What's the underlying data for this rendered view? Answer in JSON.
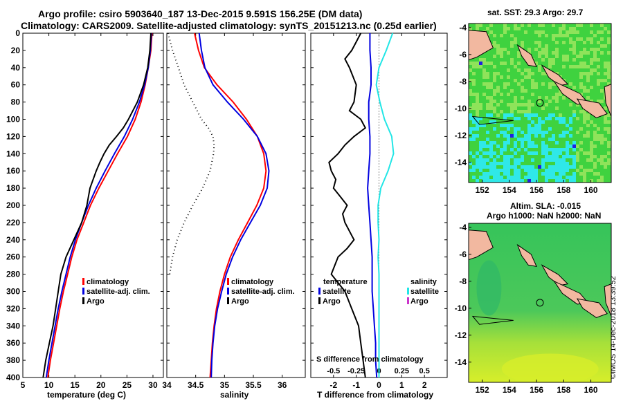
{
  "title": {
    "line1": "Argo profile: csiro 5903640_187 13-Dec-2015 9.591S 156.25E (DM data)",
    "line2": "Climatology: CARS2009. Satellite-adjusted climatology: synTS_20151213.nc (0.25d earlier)"
  },
  "sst_map": {
    "header": "sat. SST: 29.3 Argo: 29.7",
    "xticks": [
      152,
      154,
      156,
      158,
      160
    ],
    "yticks": [
      -4,
      -6,
      -8,
      -10,
      -12,
      -14
    ],
    "xlim": [
      151,
      161.5
    ],
    "ylim": [
      -15.5,
      -3.7
    ],
    "float_lon": 156.25,
    "float_lat": -9.591,
    "color_bg": "#3fd23f",
    "color_alt": "#8fe35a",
    "color_cyan": "#2fe8e8",
    "color_blue": "#2020e0",
    "color_land": "#f2b8a0"
  },
  "sla_map": {
    "header_line1": "Altim. SLA: -0.015",
    "header_line2": "Argo h1000: NaN h2000: NaN",
    "xticks": [
      152,
      154,
      156,
      158,
      160
    ],
    "yticks": [
      -4,
      -6,
      -8,
      -10,
      -12,
      -14
    ],
    "xlim": [
      151,
      161.5
    ],
    "ylim": [
      -15.5,
      -3.7
    ],
    "color_green": "#36c45a",
    "color_yellow": "#d7ee2a"
  },
  "timestamp": "©IMOS 14-Dec-2018 13:39:52",
  "colors": {
    "climatology": "#ff0000",
    "satellite": "#0000e0",
    "argo": "#000000",
    "satellite_salinity": "#22e6e6",
    "argo_salinity": "#cc33cc"
  },
  "chart_data": [
    {
      "type": "line",
      "title": "",
      "xlabel": "temperature (deg C)",
      "ylabel": "",
      "xlim": [
        5,
        32
      ],
      "ylim": [
        400,
        0
      ],
      "xticks": [
        5,
        10,
        15,
        20,
        25,
        30
      ],
      "yticks": [
        0,
        20,
        40,
        60,
        80,
        100,
        120,
        140,
        160,
        180,
        200,
        220,
        240,
        260,
        280,
        300,
        320,
        340,
        360,
        380,
        400
      ],
      "legend": [
        "climatology",
        "satellite-adj. clim.",
        "Argo"
      ],
      "legend_position": "bottom-right",
      "series": [
        {
          "name": "climatology",
          "color": "red",
          "depth": [
            0,
            20,
            40,
            60,
            80,
            100,
            120,
            140,
            160,
            180,
            200,
            220,
            240,
            260,
            280,
            300,
            320,
            340,
            360,
            380,
            400
          ],
          "values": [
            29.8,
            29.6,
            29.1,
            28.5,
            27.7,
            26.6,
            25.1,
            23.2,
            21.4,
            19.6,
            18.0,
            16.7,
            15.4,
            14.4,
            13.6,
            12.8,
            12.1,
            11.5,
            10.9,
            10.3,
            9.8
          ]
        },
        {
          "name": "satellite-adj. clim.",
          "color": "blue",
          "depth": [
            0,
            20,
            40,
            60,
            80,
            100,
            120,
            140,
            160,
            180,
            200,
            220,
            240,
            260,
            280,
            300,
            320,
            340,
            360,
            380,
            400
          ],
          "values": [
            29.7,
            29.5,
            29.1,
            28.4,
            27.4,
            26.1,
            24.5,
            22.6,
            20.8,
            19.1,
            17.6,
            16.3,
            15.1,
            14.1,
            13.3,
            12.5,
            11.8,
            11.2,
            10.6,
            10.0,
            9.5
          ]
        },
        {
          "name": "Argo",
          "color": "black",
          "depth": [
            0,
            20,
            40,
            60,
            80,
            100,
            110,
            120,
            130,
            140,
            150,
            160,
            180,
            200,
            220,
            240,
            260,
            280,
            300,
            320,
            340,
            360,
            380,
            400
          ],
          "values": [
            29.6,
            29.4,
            29.0,
            28.2,
            27.0,
            25.3,
            24.3,
            23.0,
            21.6,
            20.6,
            19.8,
            19.1,
            17.9,
            17.3,
            16.3,
            14.8,
            13.3,
            12.3,
            11.8,
            11.3,
            10.8,
            10.1,
            9.4,
            8.9
          ]
        }
      ]
    },
    {
      "type": "line",
      "title": "",
      "xlabel": "salinity",
      "ylabel": "",
      "xlim": [
        34,
        36.4
      ],
      "ylim": [
        400,
        0
      ],
      "xticks": [
        34,
        34.5,
        35,
        35.5,
        36
      ],
      "legend": [
        "climatology",
        "satellite-adj. clim.",
        "Argo"
      ],
      "legend_position": "bottom-right",
      "series": [
        {
          "name": "climatology",
          "color": "red",
          "depth": [
            0,
            20,
            40,
            60,
            80,
            100,
            120,
            140,
            160,
            180,
            200,
            220,
            240,
            260,
            280,
            300,
            320,
            340,
            360,
            380,
            400
          ],
          "values": [
            34.48,
            34.55,
            34.65,
            34.87,
            35.15,
            35.38,
            35.57,
            35.68,
            35.72,
            35.68,
            35.56,
            35.4,
            35.24,
            35.1,
            35.0,
            34.92,
            34.86,
            34.82,
            34.79,
            34.77,
            34.75
          ]
        },
        {
          "name": "satellite-adj. clim.",
          "color": "blue",
          "depth": [
            0,
            20,
            40,
            60,
            80,
            100,
            120,
            140,
            160,
            180,
            200,
            220,
            240,
            260,
            280,
            300,
            320,
            340,
            360,
            380,
            400
          ],
          "values": [
            34.56,
            34.6,
            34.66,
            34.8,
            35.05,
            35.33,
            35.57,
            35.72,
            35.77,
            35.74,
            35.62,
            35.45,
            35.28,
            35.14,
            35.03,
            34.95,
            34.88,
            34.83,
            34.8,
            34.78,
            34.77
          ]
        },
        {
          "name": "Argo",
          "color": "black",
          "style": "dotted",
          "depth": [
            0,
            20,
            40,
            60,
            80,
            100,
            110,
            120,
            130,
            140,
            150,
            160,
            180,
            200,
            220,
            240,
            260,
            280
          ],
          "values": [
            34.02,
            34.1,
            34.2,
            34.3,
            34.45,
            34.6,
            34.72,
            34.8,
            34.82,
            34.81,
            34.78,
            34.75,
            34.62,
            34.45,
            34.3,
            34.18,
            34.1,
            34.05
          ]
        }
      ]
    },
    {
      "type": "line",
      "title": "",
      "xlabel": "T difference from climatology",
      "secondary_xlabel": "S difference from climatology",
      "xlim": [
        -3,
        3
      ],
      "ylim": [
        400,
        0
      ],
      "xticks": [
        -2,
        -1,
        0,
        1,
        2
      ],
      "secondary_xticks": [
        -0.5,
        -0.25,
        0,
        0.25,
        0.5
      ],
      "legend_temperature_title": "temperature",
      "legend_salinity_title": "salinity",
      "legend": [
        "satellite",
        "Argo",
        "satellite",
        "Argo"
      ],
      "legend_position": "bottom",
      "series": [
        {
          "name": "T satellite",
          "color": "blue",
          "depth": [
            0,
            20,
            40,
            60,
            80,
            100,
            120,
            140,
            160,
            180,
            200,
            220,
            240,
            260,
            280,
            300,
            320,
            340,
            360,
            380,
            400
          ],
          "values": [
            -0.4,
            -0.4,
            -0.35,
            -0.35,
            -0.45,
            -0.45,
            -0.4,
            -0.4,
            -0.45,
            -0.5,
            -0.45,
            -0.4,
            -0.35,
            -0.3,
            -0.3,
            -0.3,
            -0.25,
            -0.2,
            -0.15,
            -0.15,
            -0.1
          ]
        },
        {
          "name": "T Argo",
          "color": "black",
          "depth": [
            0,
            10,
            20,
            30,
            40,
            60,
            80,
            90,
            100,
            110,
            120,
            130,
            140,
            150,
            160,
            170,
            180,
            190,
            200,
            210,
            220,
            240,
            250,
            260,
            280,
            300,
            320,
            340,
            360,
            380,
            400
          ],
          "values": [
            -0.8,
            -1.0,
            -1.2,
            -1.5,
            -1.3,
            -1.0,
            -1.1,
            -1.3,
            -0.8,
            -0.6,
            -1.1,
            -1.5,
            -1.8,
            -2.2,
            -2.1,
            -1.9,
            -2.0,
            -1.7,
            -1.4,
            -1.6,
            -1.5,
            -1.1,
            -1.4,
            -1.8,
            -2.1,
            -1.5,
            -1.2,
            -0.9,
            -0.8,
            -0.7,
            -0.6
          ]
        }
      ],
      "secondary_series": [
        {
          "name": "S satellite",
          "color": "cyan",
          "depth": [
            0,
            20,
            40,
            60,
            80,
            100,
            120,
            140,
            160,
            180,
            200,
            220,
            240,
            260,
            280,
            300,
            320,
            340,
            360,
            380,
            400
          ],
          "values": [
            0.15,
            0.08,
            0.0,
            -0.03,
            0.01,
            0.06,
            0.14,
            0.16,
            0.1,
            0.02,
            -0.01,
            -0.01,
            0.0,
            -0.01,
            0.0,
            0.0,
            0.0,
            0.0,
            0.0,
            0.0,
            0.0
          ]
        }
      ]
    }
  ]
}
